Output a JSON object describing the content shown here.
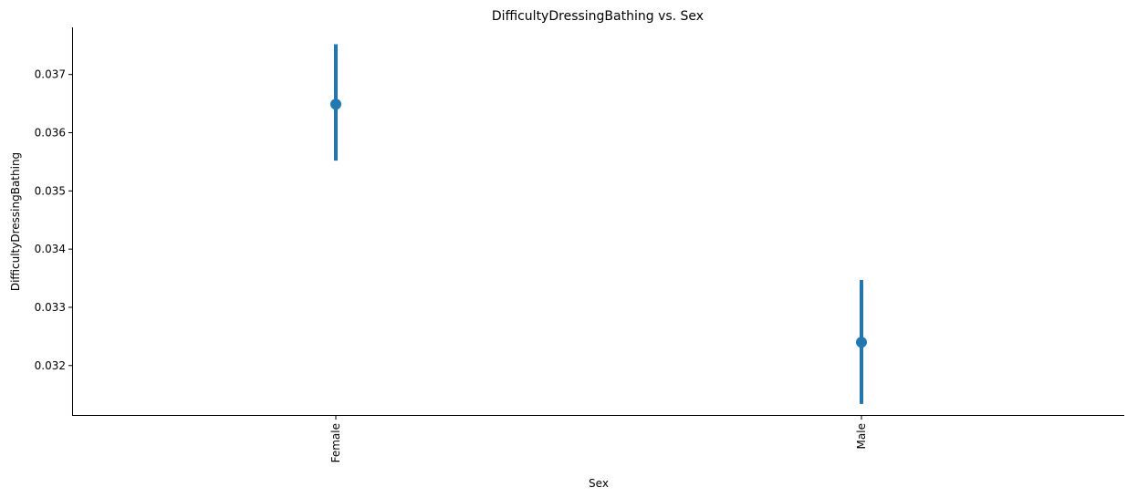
{
  "chart_data": {
    "type": "scatter",
    "title": "DifficultyDressingBathing vs. Sex",
    "xlabel": "Sex",
    "ylabel": "DifficultyDressingBathing",
    "categories": [
      "Female",
      "Male"
    ],
    "points": [
      {
        "category": "Female",
        "value": 0.03649,
        "ci_low": 0.03552,
        "ci_high": 0.03752
      },
      {
        "category": "Male",
        "value": 0.0324,
        "ci_low": 0.03134,
        "ci_high": 0.03347
      }
    ],
    "yticks": [
      "0.032",
      "0.033",
      "0.034",
      "0.035",
      "0.036",
      "0.037"
    ],
    "ylim": [
      0.03115,
      0.03781
    ],
    "grid": false,
    "legend": "none",
    "series_color": "#1f77b4"
  }
}
